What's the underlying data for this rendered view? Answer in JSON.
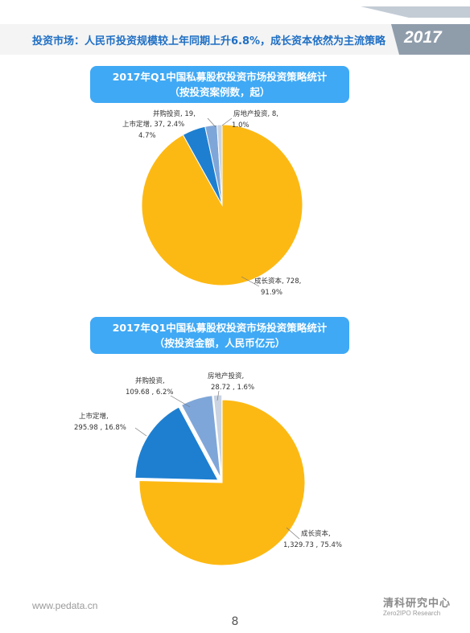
{
  "header": {
    "title": "投资市场：人民币投资规模较上年同期上升6.8%，成长资本依然为主流策略",
    "year": "2017"
  },
  "charts": [
    {
      "banner_line1": "2017年Q1中国私募股权投资市场投资策略统计",
      "banner_line2": "（按投资案例数，起）"
    },
    {
      "banner_line1": "2017年Q1中国私募股权投资市场投资策略统计",
      "banner_line2": "（按投资金额，人民币亿元）"
    }
  ],
  "chart_data": [
    {
      "type": "pie",
      "title": "2017年Q1中国私募股权投资市场投资策略统计（按投资案例数，起）",
      "slices": [
        {
          "name": "成长资本",
          "value": 728,
          "percent": "91.9%",
          "label_a": "成长资本, 728,",
          "label_b": "91.9%",
          "color": "#fdb913"
        },
        {
          "name": "上市定增",
          "value": 37,
          "percent": "4.7%",
          "label_a": "上市定增, 37, 2.4%",
          "label_b": "4.7%",
          "color": "#1e7fd0"
        },
        {
          "name": "并购投资",
          "value": 19,
          "percent": "2.4%",
          "label_a": "并购投资, 19,",
          "label_b": "",
          "color": "#7fa6d8"
        },
        {
          "name": "房地产投资",
          "value": 8,
          "percent": "1.0%",
          "label_a": "房地产投资, 8,",
          "label_b": "1.0%",
          "color": "#c9d3e2"
        }
      ]
    },
    {
      "type": "pie",
      "title": "2017年Q1中国私募股权投资市场投资策略统计（按投资金额，人民币亿元）",
      "slices": [
        {
          "name": "成长资本",
          "value": 1329.73,
          "percent": "75.4%",
          "label_a": "成长资本,",
          "label_b": "1,329.73 , 75.4%",
          "color": "#fdb913"
        },
        {
          "name": "上市定增",
          "value": 295.98,
          "percent": "16.8%",
          "label_a": "上市定增,",
          "label_b": "295.98 , 16.8%",
          "color": "#1e7fd0"
        },
        {
          "name": "并购投资",
          "value": 109.68,
          "percent": "6.2%",
          "label_a": "并购投资,",
          "label_b": "109.68 , 6.2%",
          "color": "#7fa6d8"
        },
        {
          "name": "房地产投资",
          "value": 28.72,
          "percent": "1.6%",
          "label_a": "房地产投资,",
          "label_b": "28.72 , 1.6%",
          "color": "#c9d3e2"
        }
      ]
    }
  ],
  "footer": {
    "url": "www.pedata.cn",
    "page_number": "8",
    "logo_cn": "清科研究中心",
    "logo_en": "Zero2IPO Research"
  },
  "colors": {
    "accent_blue": "#3fa9f5",
    "header_blue": "#1f6fc4",
    "year_tab": "#9aa7b4"
  }
}
